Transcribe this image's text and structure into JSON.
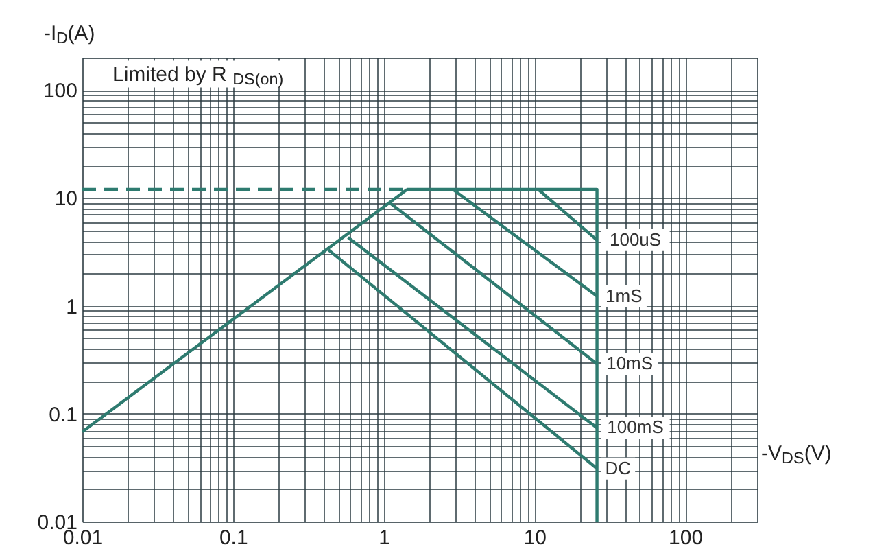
{
  "chart_data": {
    "type": "line",
    "xlabel": "-V$_{DS}$(V)",
    "ylabel": "-I$_{D}$(A)",
    "log": "xy",
    "grid": true,
    "xlim": [
      0.01,
      300
    ],
    "ylim": [
      0.01,
      200
    ],
    "xticks": [
      0.01,
      {
        "value": 0.02,
        "label": null
      },
      {
        "value": 0.03,
        "label": null
      },
      {
        "value": 0.04,
        "label": null
      },
      {
        "value": 0.05,
        "label": null
      },
      {
        "value": 0.06,
        "label": null
      },
      {
        "value": 0.07,
        "label": null
      },
      {
        "value": 0.08,
        "label": null
      },
      {
        "value": 0.09,
        "label": null
      },
      0.1,
      {
        "value": 0.2,
        "label": null
      },
      {
        "value": 0.3,
        "label": null
      },
      {
        "value": 0.4,
        "label": null
      },
      {
        "value": 0.5,
        "label": null
      },
      {
        "value": 0.6,
        "label": null
      },
      {
        "value": 0.7,
        "label": null
      },
      {
        "value": 0.8,
        "label": null
      },
      {
        "value": 0.9,
        "label": null
      },
      1,
      {
        "value": 2,
        "label": null
      },
      {
        "value": 3,
        "label": null
      },
      {
        "value": 4,
        "label": null
      },
      {
        "value": 5,
        "label": null
      },
      {
        "value": 6,
        "label": null
      },
      {
        "value": 7,
        "label": null
      },
      {
        "value": 8,
        "label": null
      },
      {
        "value": 9,
        "label": null
      },
      10,
      {
        "value": 20,
        "label": null
      },
      {
        "value": 30,
        "label": null
      },
      {
        "value": 40,
        "label": null
      },
      {
        "value": 50,
        "label": null
      },
      {
        "value": 60,
        "label": null
      },
      {
        "value": 70,
        "label": null
      },
      {
        "value": 80,
        "label": null
      },
      {
        "value": 90,
        "label": null
      },
      100,
      {
        "value": 200,
        "label": null
      },
      {
        "value": 300,
        "label": null
      }
    ],
    "yticks": [
      0.01,
      {
        "value": 0.02,
        "label": null
      },
      {
        "value": 0.03,
        "label": null
      },
      {
        "value": 0.04,
        "label": null
      },
      {
        "value": 0.05,
        "label": null
      },
      {
        "value": 0.06,
        "label": null
      },
      {
        "value": 0.07,
        "label": null
      },
      {
        "value": 0.08,
        "label": null
      },
      {
        "value": 0.09,
        "label": null
      },
      0.1,
      {
        "value": 0.2,
        "label": null
      },
      {
        "value": 0.3,
        "label": null
      },
      {
        "value": 0.4,
        "label": null
      },
      {
        "value": 0.5,
        "label": null
      },
      {
        "value": 0.6,
        "label": null
      },
      {
        "value": 0.7,
        "label": null
      },
      {
        "value": 0.8,
        "label": null
      },
      {
        "value": 0.9,
        "label": null
      },
      1,
      {
        "value": 2,
        "label": null
      },
      {
        "value": 3,
        "label": null
      },
      {
        "value": 4,
        "label": null
      },
      {
        "value": 5,
        "label": null
      },
      {
        "value": 6,
        "label": null
      },
      {
        "value": 7,
        "label": null
      },
      {
        "value": 8,
        "label": null
      },
      {
        "value": 9,
        "label": null
      },
      10,
      {
        "value": 20,
        "label": null
      },
      {
        "value": 30,
        "label": null
      },
      {
        "value": 40,
        "label": null
      },
      {
        "value": 50,
        "label": null
      },
      {
        "value": 60,
        "label": null
      },
      {
        "value": 70,
        "label": null
      },
      {
        "value": 80,
        "label": null
      },
      {
        "value": 90,
        "label": null
      },
      100,
      {
        "value": 200,
        "label": null
      }
    ],
    "series": [
      {
        "color": "#2e7b70",
        "line_style": "dashed",
        "x": [
          0.01,
          1.43
        ],
        "values": [
          12,
          12
        ]
      },
      {
        "color": "#2e7b70",
        "x": [
          0.01,
          1.43
        ],
        "values": [
          0.068,
          12
        ]
      },
      {
        "color": "#2e7b70",
        "x": [
          1.43,
          26,
          26
        ],
        "values": [
          12,
          12,
          0.01
        ]
      },
      {
        "color": "#2e7b70",
        "x": [
          10.6,
          26
        ],
        "values": [
          12,
          4.07
        ]
      },
      {
        "color": "#2e7b70",
        "x": [
          2.88,
          26
        ],
        "values": [
          12,
          1.23
        ]
      },
      {
        "color": "#2e7b70",
        "x": [
          1.09,
          26
        ],
        "values": [
          9.1,
          0.29
        ]
      },
      {
        "color": "#2e7b70",
        "x": [
          0.58,
          26
        ],
        "values": [
          4.3,
          0.074
        ]
      },
      {
        "color": "#2e7b70",
        "x": [
          0.43,
          26
        ],
        "values": [
          3.3,
          0.031
        ]
      }
    ],
    "annotations": [
      "Limited by R$_{DS(on)}$",
      "100uS",
      "1mS",
      "10mS",
      "100mS",
      "DC"
    ]
  }
}
